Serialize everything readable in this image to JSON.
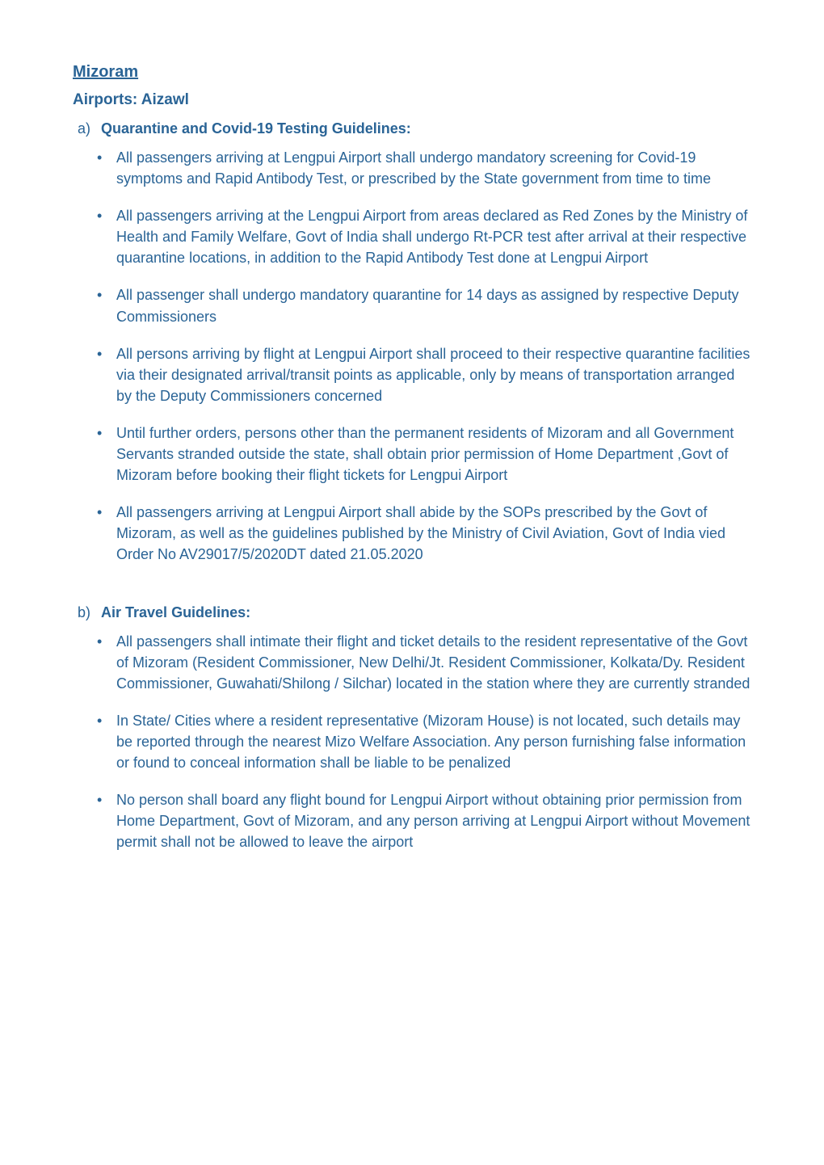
{
  "colors": {
    "text": "#2a6496",
    "background": "#ffffff"
  },
  "typography": {
    "body_fontsize": 18,
    "title_fontsize": 20,
    "subtitle_fontsize": 19,
    "line_height": 1.45,
    "font_family": "-apple-system, BlinkMacSystemFont, Segoe UI, Helvetica, Arial, sans-serif"
  },
  "title": "Mizoram",
  "subtitle": "Airports: Aizawl",
  "sections": [
    {
      "marker": "a)",
      "heading": "Quarantine and Covid-19 Testing Guidelines:",
      "bullets": [
        "All passengers arriving at Lengpui Airport shall undergo mandatory screening for Covid-19 symptoms and Rapid Antibody Test, or prescribed by the State government from time to time",
        "All passengers arriving at the Lengpui Airport from areas declared as Red Zones by the Ministry of Health and Family Welfare, Govt of India shall undergo Rt-PCR test after arrival at their respective quarantine locations, in addition to the Rapid Antibody Test done at Lengpui Airport",
        "All passenger shall undergo mandatory quarantine for 14 days as assigned by respective Deputy Commissioners",
        "All persons arriving by flight at Lengpui Airport shall proceed to their respective quarantine facilities via their designated arrival/transit points as applicable, only by means of transportation arranged by the Deputy Commissioners concerned",
        "Until further orders, persons other than the permanent residents of Mizoram and all Government Servants stranded outside the state, shall obtain prior permission of Home Department ,Govt of Mizoram before booking their flight tickets for Lengpui Airport",
        "All passengers arriving at Lengpui Airport shall abide by the SOPs prescribed by the Govt of Mizoram, as well as the guidelines published by the Ministry of Civil Aviation, Govt of India vied Order No AV29017/5/2020DT dated 21.05.2020"
      ]
    },
    {
      "marker": "b)",
      "heading": "Air Travel Guidelines:",
      "bullets": [
        "All passengers shall intimate their flight and ticket details to the resident representative of the Govt of Mizoram (Resident Commissioner, New Delhi/Jt. Resident Commissioner, Kolkata/Dy. Resident Commissioner, Guwahati/Shilong / Silchar) located in the station where they are currently stranded",
        "In State/ Cities where a resident representative (Mizoram House) is not located, such details may be reported through the nearest Mizo Welfare Association. Any person furnishing false information or found to conceal information shall be liable to be penalized",
        "No person shall board any flight bound for Lengpui Airport without obtaining prior permission from Home Department, Govt of Mizoram, and any person arriving at Lengpui Airport without Movement permit shall not be allowed to leave the airport"
      ]
    }
  ]
}
